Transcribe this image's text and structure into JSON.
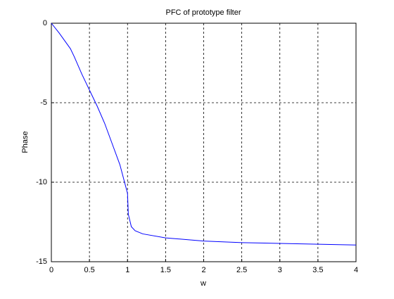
{
  "chart_data": {
    "type": "line",
    "title": "PFC of prototype filter",
    "x_label": "w",
    "y_label": "Phase",
    "x": [
      0,
      0.1,
      0.25,
      0.3,
      0.4,
      0.5,
      0.6,
      0.7,
      0.8,
      0.9,
      0.95,
      1.0,
      1.01,
      1.05,
      1.1,
      1.2,
      1.5,
      2,
      2.5,
      3,
      3.5,
      4
    ],
    "series": [
      {
        "name": "phase",
        "color": "#0000ff",
        "values": [
          0,
          -0.6,
          -1.6,
          -2.1,
          -3.2,
          -4.2,
          -5.2,
          -6.3,
          -7.6,
          -8.9,
          -9.8,
          -10.7,
          -12,
          -12.8,
          -13.05,
          -13.25,
          -13.5,
          -13.7,
          -13.8,
          -13.85,
          -13.9,
          -13.95
        ]
      }
    ],
    "xlim": [
      0,
      4
    ],
    "ylim": [
      -15,
      0
    ],
    "xticks": [
      0,
      0.5,
      1,
      1.5,
      2,
      2.5,
      3,
      3.5,
      4
    ],
    "yticks": [
      -15,
      -10,
      -5,
      0
    ],
    "grid": true
  }
}
